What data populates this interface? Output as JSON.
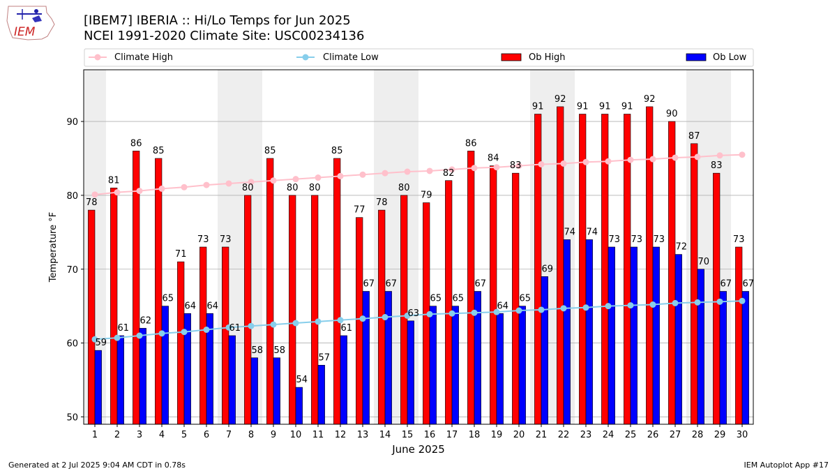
{
  "logo_text": "IEM",
  "title_line1": "[IBEM7] IBERIA :: Hi/Lo Temps for Jun 2025",
  "title_line2": "NCEI 1991-2020 Climate Site: USC00234136",
  "footer_left": "Generated at 2 Jul 2025 9:04 AM CDT in 0.78s",
  "footer_right": "IEM Autoplot App #17",
  "colors": {
    "climate_high": "#ffc0cb",
    "climate_low": "#87ceeb",
    "ob_high": "#ff0000",
    "ob_low": "#0000ff",
    "weekend_shade": "#eeeeee",
    "grid": "#b0b0b0"
  },
  "chart_data": {
    "type": "bar",
    "xlabel": "June 2025",
    "ylabel": "Temperature °F",
    "ylim": [
      49,
      97
    ],
    "yticks": [
      50,
      60,
      70,
      80,
      90
    ],
    "grid": "horizontal",
    "legend": "top",
    "categories": [
      "1",
      "2",
      "3",
      "4",
      "5",
      "6",
      "7",
      "8",
      "9",
      "10",
      "11",
      "12",
      "13",
      "14",
      "15",
      "16",
      "17",
      "18",
      "19",
      "20",
      "21",
      "22",
      "23",
      "24",
      "25",
      "26",
      "27",
      "28",
      "29",
      "30"
    ],
    "shaded_days": [
      1,
      7,
      8,
      14,
      15,
      21,
      22,
      28,
      29
    ],
    "series": [
      {
        "name": "Ob High",
        "kind": "bar",
        "values": [
          78,
          81,
          86,
          85,
          71,
          73,
          73,
          80,
          85,
          80,
          80,
          85,
          77,
          78,
          80,
          79,
          82,
          86,
          84,
          83,
          91,
          92,
          91,
          91,
          91,
          92,
          90,
          87,
          83,
          73
        ]
      },
      {
        "name": "Ob Low",
        "kind": "bar",
        "values": [
          59,
          61,
          62,
          65,
          64,
          64,
          61,
          58,
          58,
          54,
          57,
          61,
          67,
          67,
          63,
          65,
          65,
          67,
          64,
          65,
          69,
          74,
          74,
          73,
          73,
          73,
          72,
          70,
          67,
          67
        ]
      },
      {
        "name": "Climate High",
        "kind": "line",
        "values": [
          80.1,
          80.4,
          80.6,
          80.9,
          81.1,
          81.4,
          81.6,
          81.8,
          82.0,
          82.2,
          82.4,
          82.6,
          82.8,
          83.0,
          83.2,
          83.3,
          83.5,
          83.7,
          83.8,
          84.0,
          84.2,
          84.3,
          84.5,
          84.6,
          84.8,
          84.9,
          85.1,
          85.2,
          85.4,
          85.5
        ]
      },
      {
        "name": "Climate Low",
        "kind": "line",
        "values": [
          60.5,
          60.7,
          61.0,
          61.3,
          61.5,
          61.8,
          62.1,
          62.3,
          62.5,
          62.7,
          62.9,
          63.1,
          63.3,
          63.5,
          63.7,
          63.9,
          64.0,
          64.1,
          64.2,
          64.4,
          64.5,
          64.7,
          64.8,
          65.0,
          65.1,
          65.2,
          65.4,
          65.5,
          65.6,
          65.7
        ]
      }
    ]
  }
}
